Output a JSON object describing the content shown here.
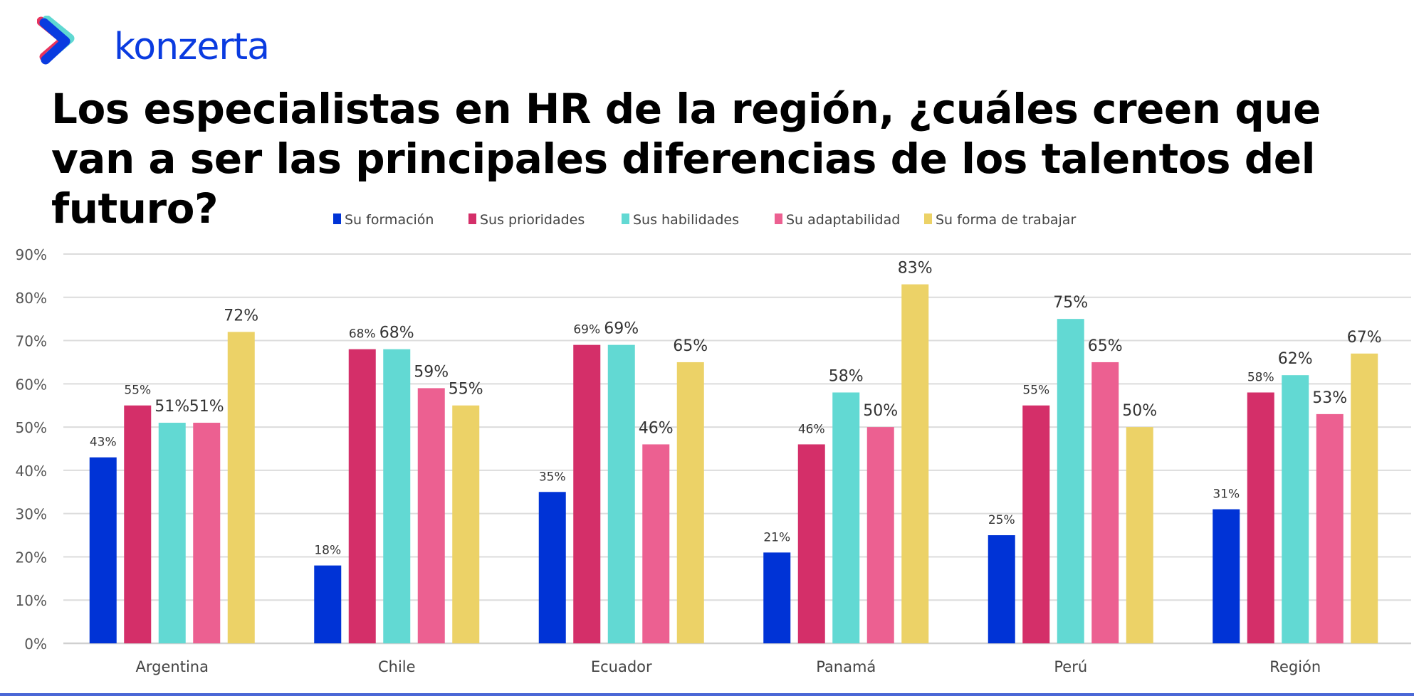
{
  "logo": {
    "text": "konzerta",
    "colors": [
      "#e8345e",
      "#5fd8d2",
      "#0a3be0"
    ]
  },
  "chart_data": {
    "type": "bar",
    "title": "Los especialistas en HR de la región, ¿cuáles creen que van a ser las principales diferencias de los talentos del futuro?",
    "categories": [
      "Argentina",
      "Chile",
      "Ecuador",
      "Panamá",
      "Perú",
      "Región"
    ],
    "series": [
      {
        "name": "Su formación",
        "color": "#0033d6",
        "values": [
          43,
          18,
          35,
          21,
          25,
          31
        ]
      },
      {
        "name": "Sus prioridades",
        "color": "#d42f69",
        "values": [
          55,
          68,
          69,
          46,
          55,
          58
        ]
      },
      {
        "name": "Sus habilidades",
        "color": "#62d9d3",
        "values": [
          51,
          68,
          69,
          58,
          75,
          62
        ]
      },
      {
        "name": "Su adaptabilidad",
        "color": "#ec6091",
        "values": [
          51,
          59,
          46,
          50,
          65,
          53
        ]
      },
      {
        "name": "Su forma de trabajar",
        "color": "#ecd267",
        "values": [
          72,
          55,
          65,
          83,
          50,
          67
        ]
      }
    ],
    "ylim": [
      0,
      90
    ],
    "yticks": [
      "0%",
      "10%",
      "20%",
      "30%",
      "40%",
      "50%",
      "60%",
      "70%",
      "80%",
      "90%"
    ],
    "value_suffix": "%",
    "grid": true,
    "legend": "top"
  }
}
